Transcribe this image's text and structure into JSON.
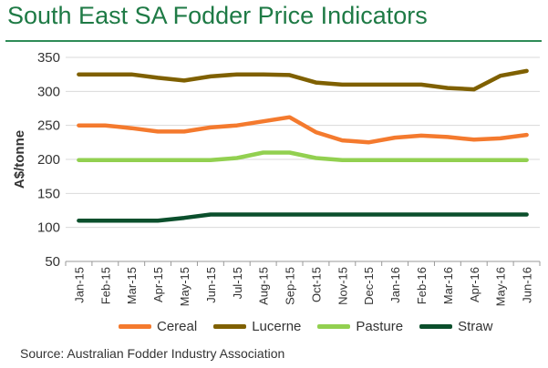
{
  "header": {
    "title": "South East SA Fodder Price Indicators"
  },
  "footer": {
    "source": "Source: Australian  Fodder Industry Association"
  },
  "chart_data": {
    "type": "line",
    "title": "South East SA Fodder Price Indicators",
    "xlabel": "",
    "ylabel": "A$/tonne",
    "ylim": [
      50,
      350
    ],
    "yticks": [
      50,
      100,
      150,
      200,
      250,
      300,
      350
    ],
    "grid": true,
    "legend_position": "bottom",
    "categories": [
      "Jan-15",
      "Feb-15",
      "Mar-15",
      "Apr-15",
      "May-15",
      "Jun-15",
      "Jul-15",
      "Aug-15",
      "Sep-15",
      "Oct-15",
      "Nov-15",
      "Dec-15",
      "Jan-16",
      "Feb-16",
      "Mar-16",
      "Apr-16",
      "May-16",
      "Jun-16"
    ],
    "series": [
      {
        "name": "Cereal",
        "color": "#f47a2e",
        "values": [
          250,
          250,
          246,
          241,
          241,
          247,
          250,
          256,
          262,
          240,
          228,
          225,
          232,
          235,
          233,
          229,
          231,
          236
        ]
      },
      {
        "name": "Lucerne",
        "color": "#7f6000",
        "values": [
          325,
          325,
          325,
          320,
          316,
          322,
          325,
          325,
          324,
          313,
          310,
          310,
          310,
          310,
          305,
          303,
          323,
          330
        ]
      },
      {
        "name": "Pasture",
        "color": "#92d050",
        "values": [
          199,
          199,
          199,
          199,
          199,
          199,
          202,
          210,
          210,
          202,
          199,
          199,
          199,
          199,
          199,
          199,
          199,
          199
        ]
      },
      {
        "name": "Straw",
        "color": "#0b4f2c",
        "values": [
          110,
          110,
          110,
          110,
          114,
          119,
          119,
          119,
          119,
          119,
          119,
          119,
          119,
          119,
          119,
          119,
          119,
          119
        ]
      }
    ]
  }
}
